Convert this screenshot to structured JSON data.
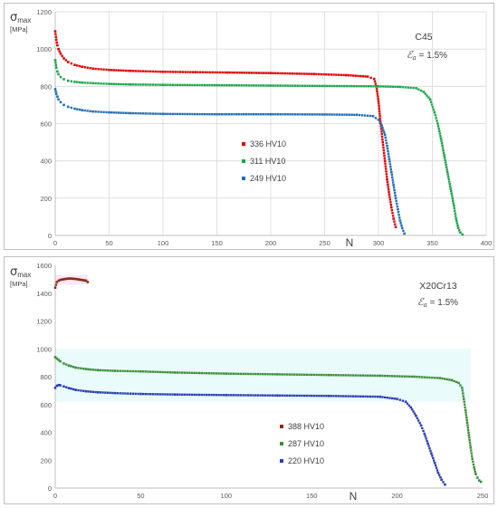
{
  "chart_data": [
    {
      "type": "scatter",
      "ylabel_symbol": "σ",
      "ylabel_sub": "max",
      "ylabel_unit": "[MPa]",
      "xlabel": "N",
      "material": "C45",
      "strain_label": "ℰ",
      "strain_sub": "a",
      "strain_value": "= 1.5%",
      "xlim": [
        0,
        400
      ],
      "ylim": [
        0,
        1200
      ],
      "xticks": [
        0,
        50,
        100,
        150,
        200,
        250,
        300,
        350,
        400
      ],
      "yticks": [
        0,
        200,
        400,
        600,
        800,
        1000,
        1200
      ],
      "grid": true,
      "legend_position": "center",
      "series": [
        {
          "name": "336 HV10",
          "color": "#e00000",
          "x": [
            0,
            1,
            2,
            3,
            5,
            8,
            12,
            18,
            25,
            35,
            50,
            70,
            100,
            130,
            160,
            200,
            240,
            270,
            290,
            296,
            298,
            300,
            302,
            304,
            306,
            308,
            310,
            312,
            314,
            316
          ],
          "y": [
            1095,
            1050,
            1020,
            1000,
            975,
            950,
            930,
            915,
            905,
            895,
            888,
            883,
            878,
            876,
            874,
            871,
            866,
            860,
            852,
            840,
            800,
            720,
            600,
            500,
            400,
            300,
            220,
            150,
            90,
            45
          ]
        },
        {
          "name": "311 HV10",
          "color": "#1aa64a",
          "x": [
            0,
            1,
            2,
            3,
            5,
            8,
            12,
            18,
            25,
            35,
            50,
            70,
            100,
            150,
            200,
            250,
            300,
            320,
            335,
            342,
            348,
            352,
            355,
            358,
            361,
            364,
            367,
            370,
            372,
            374,
            376,
            378
          ],
          "y": [
            940,
            900,
            880,
            865,
            850,
            838,
            830,
            824,
            820,
            817,
            813,
            810,
            808,
            806,
            804,
            802,
            800,
            797,
            790,
            770,
            730,
            660,
            600,
            520,
            430,
            340,
            250,
            160,
            90,
            40,
            15,
            5
          ]
        },
        {
          "name": "249 HV10",
          "color": "#1f6fb5",
          "x": [
            0,
            1,
            2,
            3,
            5,
            8,
            12,
            18,
            25,
            35,
            50,
            70,
            100,
            150,
            200,
            250,
            280,
            295,
            300,
            303,
            306,
            308,
            310,
            312,
            314,
            316,
            318,
            320,
            322,
            324
          ],
          "y": [
            785,
            760,
            745,
            730,
            715,
            700,
            690,
            680,
            672,
            665,
            660,
            656,
            652,
            650,
            650,
            649,
            647,
            640,
            620,
            590,
            540,
            480,
            410,
            340,
            270,
            200,
            140,
            80,
            40,
            10
          ]
        }
      ]
    },
    {
      "type": "scatter",
      "ylabel_symbol": "σ",
      "ylabel_sub": "max",
      "ylabel_unit": "[MPa]",
      "xlabel": "N",
      "material": "X20Cr13",
      "strain_label": "ℰ",
      "strain_sub": "a",
      "strain_value": "= 1.5%",
      "xlim": [
        0,
        250
      ],
      "ylim": [
        0,
        1600
      ],
      "xticks": [
        0,
        50,
        100,
        150,
        200,
        250
      ],
      "yticks": [
        0,
        200,
        400,
        600,
        800,
        1000,
        1200,
        1400,
        1600
      ],
      "grid": false,
      "legend_position": "bottom-right",
      "series": [
        {
          "name": "388 HV10",
          "color": "#8b2a1a",
          "x": [
            0,
            1,
            2,
            3,
            4,
            5,
            6,
            7,
            8,
            9,
            10,
            11,
            12,
            13,
            14,
            15,
            16,
            17,
            18,
            19
          ],
          "y": [
            1440,
            1480,
            1490,
            1495,
            1498,
            1500,
            1502,
            1504,
            1505,
            1505,
            1504,
            1503,
            1502,
            1500,
            1498,
            1496,
            1494,
            1492,
            1490,
            1480
          ]
        },
        {
          "name": "287 HV10",
          "color": "#3d8f3a",
          "x": [
            0,
            1,
            2,
            3,
            5,
            8,
            12,
            18,
            25,
            35,
            50,
            70,
            100,
            130,
            160,
            190,
            210,
            225,
            232,
            236,
            238,
            239,
            240,
            241,
            242,
            243,
            244,
            245,
            246,
            247,
            248,
            249
          ],
          "y": [
            940,
            930,
            920,
            910,
            895,
            880,
            865,
            855,
            847,
            842,
            838,
            830,
            822,
            817,
            812,
            807,
            800,
            790,
            775,
            755,
            720,
            640,
            560,
            470,
            380,
            290,
            210,
            150,
            100,
            75,
            55,
            45
          ]
        },
        {
          "name": "220 HV10",
          "color": "#2c3eb0",
          "x": [
            0,
            1,
            2,
            3,
            5,
            8,
            12,
            18,
            25,
            35,
            50,
            70,
            100,
            130,
            160,
            190,
            200,
            205,
            208,
            211,
            214,
            216,
            218,
            220,
            222,
            224,
            226,
            228
          ],
          "y": [
            720,
            735,
            740,
            738,
            730,
            718,
            705,
            695,
            688,
            682,
            676,
            672,
            668,
            665,
            662,
            656,
            640,
            620,
            580,
            520,
            450,
            390,
            320,
            250,
            180,
            110,
            60,
            25
          ]
        }
      ]
    }
  ]
}
